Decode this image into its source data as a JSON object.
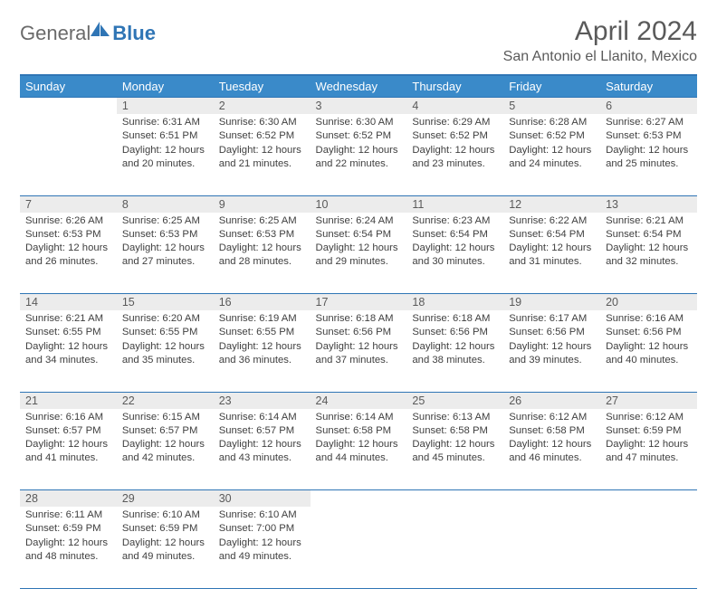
{
  "logo": {
    "part1": "General",
    "part2": "Blue"
  },
  "title": "April 2024",
  "location": "San Antonio el Llanito, Mexico",
  "colors": {
    "header_bg": "#3a8ac9",
    "header_border": "#2f75b5",
    "daynum_bg": "#ececec",
    "text": "#404040",
    "title_text": "#5a5a5a"
  },
  "weekdays": [
    "Sunday",
    "Monday",
    "Tuesday",
    "Wednesday",
    "Thursday",
    "Friday",
    "Saturday"
  ],
  "weeks": [
    {
      "nums": [
        "",
        "1",
        "2",
        "3",
        "4",
        "5",
        "6"
      ],
      "cells": [
        null,
        {
          "sr": "Sunrise: 6:31 AM",
          "ss": "Sunset: 6:51 PM",
          "dl": "Daylight: 12 hours and 20 minutes."
        },
        {
          "sr": "Sunrise: 6:30 AM",
          "ss": "Sunset: 6:52 PM",
          "dl": "Daylight: 12 hours and 21 minutes."
        },
        {
          "sr": "Sunrise: 6:30 AM",
          "ss": "Sunset: 6:52 PM",
          "dl": "Daylight: 12 hours and 22 minutes."
        },
        {
          "sr": "Sunrise: 6:29 AM",
          "ss": "Sunset: 6:52 PM",
          "dl": "Daylight: 12 hours and 23 minutes."
        },
        {
          "sr": "Sunrise: 6:28 AM",
          "ss": "Sunset: 6:52 PM",
          "dl": "Daylight: 12 hours and 24 minutes."
        },
        {
          "sr": "Sunrise: 6:27 AM",
          "ss": "Sunset: 6:53 PM",
          "dl": "Daylight: 12 hours and 25 minutes."
        }
      ]
    },
    {
      "nums": [
        "7",
        "8",
        "9",
        "10",
        "11",
        "12",
        "13"
      ],
      "cells": [
        {
          "sr": "Sunrise: 6:26 AM",
          "ss": "Sunset: 6:53 PM",
          "dl": "Daylight: 12 hours and 26 minutes."
        },
        {
          "sr": "Sunrise: 6:25 AM",
          "ss": "Sunset: 6:53 PM",
          "dl": "Daylight: 12 hours and 27 minutes."
        },
        {
          "sr": "Sunrise: 6:25 AM",
          "ss": "Sunset: 6:53 PM",
          "dl": "Daylight: 12 hours and 28 minutes."
        },
        {
          "sr": "Sunrise: 6:24 AM",
          "ss": "Sunset: 6:54 PM",
          "dl": "Daylight: 12 hours and 29 minutes."
        },
        {
          "sr": "Sunrise: 6:23 AM",
          "ss": "Sunset: 6:54 PM",
          "dl": "Daylight: 12 hours and 30 minutes."
        },
        {
          "sr": "Sunrise: 6:22 AM",
          "ss": "Sunset: 6:54 PM",
          "dl": "Daylight: 12 hours and 31 minutes."
        },
        {
          "sr": "Sunrise: 6:21 AM",
          "ss": "Sunset: 6:54 PM",
          "dl": "Daylight: 12 hours and 32 minutes."
        }
      ]
    },
    {
      "nums": [
        "14",
        "15",
        "16",
        "17",
        "18",
        "19",
        "20"
      ],
      "cells": [
        {
          "sr": "Sunrise: 6:21 AM",
          "ss": "Sunset: 6:55 PM",
          "dl": "Daylight: 12 hours and 34 minutes."
        },
        {
          "sr": "Sunrise: 6:20 AM",
          "ss": "Sunset: 6:55 PM",
          "dl": "Daylight: 12 hours and 35 minutes."
        },
        {
          "sr": "Sunrise: 6:19 AM",
          "ss": "Sunset: 6:55 PM",
          "dl": "Daylight: 12 hours and 36 minutes."
        },
        {
          "sr": "Sunrise: 6:18 AM",
          "ss": "Sunset: 6:56 PM",
          "dl": "Daylight: 12 hours and 37 minutes."
        },
        {
          "sr": "Sunrise: 6:18 AM",
          "ss": "Sunset: 6:56 PM",
          "dl": "Daylight: 12 hours and 38 minutes."
        },
        {
          "sr": "Sunrise: 6:17 AM",
          "ss": "Sunset: 6:56 PM",
          "dl": "Daylight: 12 hours and 39 minutes."
        },
        {
          "sr": "Sunrise: 6:16 AM",
          "ss": "Sunset: 6:56 PM",
          "dl": "Daylight: 12 hours and 40 minutes."
        }
      ]
    },
    {
      "nums": [
        "21",
        "22",
        "23",
        "24",
        "25",
        "26",
        "27"
      ],
      "cells": [
        {
          "sr": "Sunrise: 6:16 AM",
          "ss": "Sunset: 6:57 PM",
          "dl": "Daylight: 12 hours and 41 minutes."
        },
        {
          "sr": "Sunrise: 6:15 AM",
          "ss": "Sunset: 6:57 PM",
          "dl": "Daylight: 12 hours and 42 minutes."
        },
        {
          "sr": "Sunrise: 6:14 AM",
          "ss": "Sunset: 6:57 PM",
          "dl": "Daylight: 12 hours and 43 minutes."
        },
        {
          "sr": "Sunrise: 6:14 AM",
          "ss": "Sunset: 6:58 PM",
          "dl": "Daylight: 12 hours and 44 minutes."
        },
        {
          "sr": "Sunrise: 6:13 AM",
          "ss": "Sunset: 6:58 PM",
          "dl": "Daylight: 12 hours and 45 minutes."
        },
        {
          "sr": "Sunrise: 6:12 AM",
          "ss": "Sunset: 6:58 PM",
          "dl": "Daylight: 12 hours and 46 minutes."
        },
        {
          "sr": "Sunrise: 6:12 AM",
          "ss": "Sunset: 6:59 PM",
          "dl": "Daylight: 12 hours and 47 minutes."
        }
      ]
    },
    {
      "nums": [
        "28",
        "29",
        "30",
        "",
        "",
        "",
        ""
      ],
      "cells": [
        {
          "sr": "Sunrise: 6:11 AM",
          "ss": "Sunset: 6:59 PM",
          "dl": "Daylight: 12 hours and 48 minutes."
        },
        {
          "sr": "Sunrise: 6:10 AM",
          "ss": "Sunset: 6:59 PM",
          "dl": "Daylight: 12 hours and 49 minutes."
        },
        {
          "sr": "Sunrise: 6:10 AM",
          "ss": "Sunset: 7:00 PM",
          "dl": "Daylight: 12 hours and 49 minutes."
        },
        null,
        null,
        null,
        null
      ]
    }
  ]
}
